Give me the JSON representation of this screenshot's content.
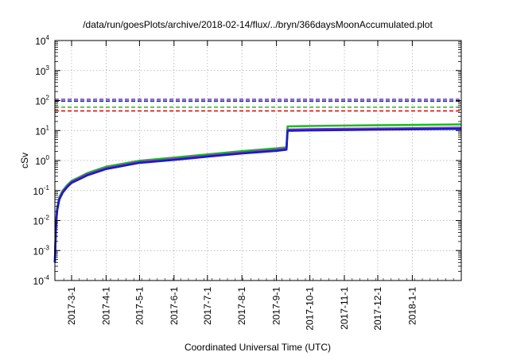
{
  "chart_data": {
    "type": "line",
    "title": "/data/run/goesPlots/archive/2018-02-14/flux/../bryn/366daysMoonAccumulated.plot",
    "xlabel": "Coordinated Universal Time (UTC)",
    "ylabel": "cSv",
    "y_scale": "log",
    "ylim": [
      0.0001,
      10000
    ],
    "y_ticks": [
      {
        "base": "10",
        "exp": "-4",
        "value": 0.0001
      },
      {
        "base": "10",
        "exp": "-3",
        "value": 0.001
      },
      {
        "base": "10",
        "exp": "-2",
        "value": 0.01
      },
      {
        "base": "10",
        "exp": "-1",
        "value": 0.1
      },
      {
        "base": "10",
        "exp": "0",
        "value": 1
      },
      {
        "base": "10",
        "exp": "1",
        "value": 10
      },
      {
        "base": "10",
        "exp": "2",
        "value": 100
      },
      {
        "base": "10",
        "exp": "3",
        "value": 1000
      },
      {
        "base": "10",
        "exp": "4",
        "value": 10000
      }
    ],
    "xlim": [
      "2017-02-14",
      "2018-02-14"
    ],
    "x_ticks": [
      "2017-3-1",
      "2017-4-1",
      "2017-5-1",
      "2017-6-1",
      "2017-7-1",
      "2017-8-1",
      "2017-9-1",
      "2017-10-1",
      "2017-11-1",
      "2017-12-1",
      "2018-1-1"
    ],
    "x_tick_dates": [
      "2017-03-01",
      "2017-04-01",
      "2017-05-01",
      "2017-06-01",
      "2017-07-01",
      "2017-08-01",
      "2017-09-01",
      "2017-10-01",
      "2017-11-01",
      "2017-12-01",
      "2018-01-01"
    ],
    "grid": true,
    "thresholds": [
      {
        "color": "#7f3fbf",
        "value": 110
      },
      {
        "color": "#1a1acc",
        "value": 95
      },
      {
        "color": "#22bb22",
        "value": 60
      },
      {
        "color": "#dd1111",
        "value": 45
      }
    ],
    "series": [
      {
        "color": "#22bb22",
        "x": [
          "2017-02-14",
          "2017-02-15",
          "2017-02-16",
          "2017-02-18",
          "2017-02-21",
          "2017-02-25",
          "2017-03-01",
          "2017-03-08",
          "2017-03-15",
          "2017-04-01",
          "2017-05-01",
          "2017-06-01",
          "2017-07-01",
          "2017-08-01",
          "2017-09-01",
          "2017-09-10",
          "2017-09-11",
          "2017-10-01",
          "2017-11-01",
          "2017-12-01",
          "2018-01-01",
          "2018-02-14"
        ],
        "y": [
          0.0004,
          0.008,
          0.025,
          0.06,
          0.1,
          0.15,
          0.21,
          0.28,
          0.38,
          0.62,
          0.98,
          1.25,
          1.6,
          2.05,
          2.55,
          2.75,
          13.8,
          14.2,
          14.6,
          15.0,
          15.4,
          15.9
        ]
      },
      {
        "color": "#7f3fbf",
        "x": [
          "2017-02-14",
          "2017-02-15",
          "2017-02-16",
          "2017-02-18",
          "2017-02-21",
          "2017-02-25",
          "2017-03-01",
          "2017-03-08",
          "2017-03-15",
          "2017-04-01",
          "2017-05-01",
          "2017-06-01",
          "2017-07-01",
          "2017-08-01",
          "2017-09-01",
          "2017-09-10",
          "2017-09-11",
          "2017-10-01",
          "2017-11-01",
          "2017-12-01",
          "2018-01-01",
          "2018-02-14"
        ],
        "y": [
          0.0004,
          0.0075,
          0.023,
          0.055,
          0.092,
          0.14,
          0.195,
          0.26,
          0.35,
          0.56,
          0.9,
          1.13,
          1.45,
          1.85,
          2.3,
          2.5,
          10.8,
          11.1,
          11.4,
          11.7,
          12.0,
          12.5
        ]
      },
      {
        "color": "#1a1acc",
        "x": [
          "2017-02-14",
          "2017-02-15",
          "2017-02-16",
          "2017-02-18",
          "2017-02-21",
          "2017-02-25",
          "2017-03-01",
          "2017-03-08",
          "2017-03-15",
          "2017-04-01",
          "2017-05-01",
          "2017-06-01",
          "2017-07-01",
          "2017-08-01",
          "2017-09-01",
          "2017-09-10",
          "2017-09-11",
          "2017-10-01",
          "2017-11-01",
          "2017-12-01",
          "2018-01-01",
          "2018-02-14"
        ],
        "y": [
          0.0004,
          0.007,
          0.021,
          0.05,
          0.085,
          0.13,
          0.18,
          0.24,
          0.32,
          0.52,
          0.84,
          1.05,
          1.35,
          1.72,
          2.1,
          2.3,
          9.8,
          10.1,
          10.4,
          10.7,
          11.0,
          11.3
        ]
      }
    ]
  }
}
